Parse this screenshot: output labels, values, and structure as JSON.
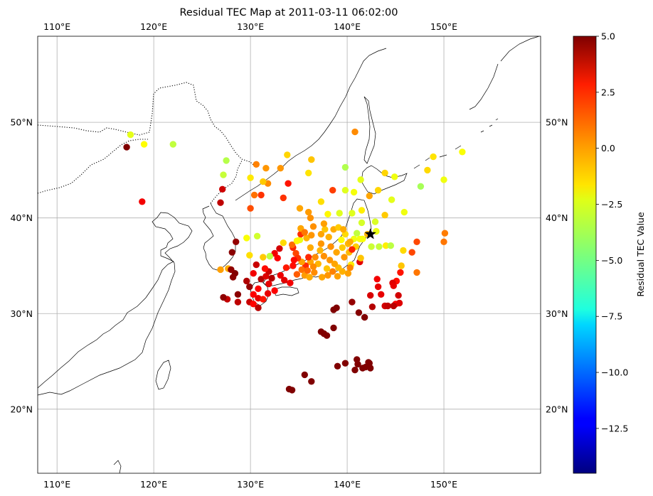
{
  "title": "Residual TEC Map at 2011-03-11 06:02:00",
  "map": {
    "lon_range": [
      108,
      160
    ],
    "lat_range": [
      13.3,
      59
    ],
    "lon_ticks": [
      110,
      120,
      130,
      140,
      150
    ],
    "lon_tick_labels": [
      "110°E",
      "120°E",
      "130°E",
      "140°E",
      "150°E"
    ],
    "lat_ticks": [
      20,
      30,
      40,
      50
    ],
    "lat_tick_labels": [
      "20°N",
      "30°N",
      "40°N",
      "50°N"
    ],
    "grid": true,
    "coastline_color": "#000000",
    "border_style": "dotted"
  },
  "epicenter": {
    "lon": 142.4,
    "lat": 38.3,
    "marker": "star",
    "color": "#000000"
  },
  "colorbar": {
    "label": "Residual TEC Value",
    "range": [
      -14.5,
      5.0
    ],
    "ticks": [
      5.0,
      2.5,
      0.0,
      -2.5,
      -5.0,
      -7.5,
      -10.0,
      -12.5
    ],
    "tick_labels": [
      "5.0",
      "2.5",
      "0.0",
      "−2.5",
      "−5.0",
      "−7.5",
      "−10.0",
      "−12.5"
    ],
    "colormap": "jet"
  },
  "chart_data": {
    "type": "scatter",
    "title": "Residual TEC Map at 2011-03-11 06:02:00",
    "xlabel": "",
    "ylabel": "",
    "colorbar_label": "Residual TEC Value",
    "xlim": [
      108,
      160
    ],
    "ylim": [
      13.3,
      59
    ],
    "grid": true,
    "points": [
      [
        117.6,
        48.7,
        -2.8
      ],
      [
        119.0,
        47.7,
        -2.3
      ],
      [
        122.0,
        47.7,
        -3.5
      ],
      [
        117.2,
        47.4,
        5.0
      ],
      [
        118.8,
        41.7,
        2.8
      ],
      [
        127.2,
        44.5,
        -3.4
      ],
      [
        127.5,
        46.0,
        -3.7
      ],
      [
        130.6,
        45.6,
        0.1
      ],
      [
        131.6,
        45.2,
        -0.3
      ],
      [
        133.1,
        45.2,
        -0.3
      ],
      [
        133.8,
        46.6,
        -1.5
      ],
      [
        136.3,
        46.1,
        -1.2
      ],
      [
        139.8,
        45.3,
        -3.8
      ],
      [
        140.8,
        49.0,
        -0.1
      ],
      [
        141.4,
        44.0,
        -2.8
      ],
      [
        143.9,
        44.7,
        -1.5
      ],
      [
        144.9,
        44.3,
        -2.6
      ],
      [
        147.6,
        43.3,
        -4.0
      ],
      [
        148.3,
        45.0,
        -1.6
      ],
      [
        148.9,
        46.4,
        -1.8
      ],
      [
        151.9,
        46.9,
        -2.4
      ],
      [
        150.0,
        44.0,
        -2.6
      ],
      [
        145.9,
        40.6,
        -2.6
      ],
      [
        144.6,
        41.9,
        -2.8
      ],
      [
        143.2,
        42.9,
        -1.5
      ],
      [
        142.3,
        42.3,
        -0.6
      ],
      [
        140.7,
        42.7,
        -2.5
      ],
      [
        139.8,
        42.9,
        -2.9
      ],
      [
        138.5,
        42.9,
        1.4
      ],
      [
        137.3,
        41.7,
        -1.7
      ],
      [
        136.0,
        44.7,
        -1.8
      ],
      [
        135.1,
        41.0,
        -0.6
      ],
      [
        136.0,
        40.6,
        -0.4
      ],
      [
        136.2,
        40.0,
        -0.2
      ],
      [
        138.0,
        40.4,
        -2.2
      ],
      [
        139.2,
        40.5,
        -2.9
      ],
      [
        140.5,
        40.5,
        -2.9
      ],
      [
        141.5,
        40.8,
        -2.0
      ],
      [
        143.9,
        40.3,
        -1.3
      ],
      [
        130.0,
        44.2,
        -1.9
      ],
      [
        131.1,
        42.4,
        1.6
      ],
      [
        131.8,
        43.6,
        -0.1
      ],
      [
        130.4,
        42.4,
        0.4
      ],
      [
        130.0,
        41.0,
        1.1
      ],
      [
        127.1,
        43.0,
        3.5
      ],
      [
        126.9,
        41.6,
        3.8
      ],
      [
        133.4,
        42.1,
        1.6
      ],
      [
        133.9,
        43.6,
        2.2
      ],
      [
        131.3,
        43.8,
        -1.3
      ],
      [
        130.7,
        38.1,
        -3.2
      ],
      [
        129.6,
        37.9,
        -2.4
      ],
      [
        128.5,
        37.5,
        4.6
      ],
      [
        128.1,
        36.4,
        4.8
      ],
      [
        126.9,
        34.6,
        -0.5
      ],
      [
        127.7,
        34.7,
        -0.7
      ],
      [
        128.4,
        34.2,
        5.0
      ],
      [
        128.0,
        34.6,
        4.7
      ],
      [
        128.2,
        33.8,
        4.8
      ],
      [
        128.7,
        32.0,
        4.8
      ],
      [
        128.7,
        31.2,
        3.8
      ],
      [
        127.6,
        31.5,
        3.7
      ],
      [
        127.2,
        31.7,
        4.7
      ],
      [
        129.9,
        31.2,
        3.6
      ],
      [
        130.3,
        31.0,
        2.5
      ],
      [
        130.8,
        30.6,
        3.9
      ],
      [
        129.9,
        32.8,
        4.6
      ],
      [
        130.3,
        32.0,
        2.6
      ],
      [
        130.8,
        31.6,
        3.0
      ],
      [
        131.3,
        31.5,
        2.2
      ],
      [
        131.8,
        32.1,
        3.0
      ],
      [
        131.1,
        33.6,
        4.0
      ],
      [
        131.6,
        33.9,
        3.2
      ],
      [
        131.9,
        34.4,
        3.6
      ],
      [
        132.2,
        33.7,
        4.0
      ],
      [
        132.5,
        32.4,
        2.6
      ],
      [
        131.9,
        33.1,
        3.0
      ],
      [
        133.5,
        33.5,
        3.1
      ],
      [
        134.1,
        33.2,
        2.8
      ],
      [
        133.7,
        34.8,
        2.1
      ],
      [
        134.4,
        35.0,
        2.3
      ],
      [
        132.5,
        36.3,
        2.8
      ],
      [
        133.0,
        36.8,
        3.4
      ],
      [
        132.0,
        36.0,
        -3.6
      ],
      [
        131.3,
        35.9,
        -1.3
      ],
      [
        130.6,
        35.1,
        3.6
      ],
      [
        129.9,
        36.1,
        -1.7
      ],
      [
        134.4,
        36.9,
        1.9
      ],
      [
        134.7,
        36.3,
        1.2
      ],
      [
        134.3,
        37.2,
        0.5
      ],
      [
        135.1,
        37.7,
        -2.7
      ],
      [
        135.2,
        38.3,
        1.7
      ],
      [
        135.2,
        38.9,
        -0.6
      ],
      [
        135.8,
        37.9,
        -0.8
      ],
      [
        136.3,
        38.2,
        -0.3
      ],
      [
        137.3,
        38.3,
        -0.6
      ],
      [
        137.7,
        38.8,
        -1.2
      ],
      [
        138.1,
        38.0,
        -0.8
      ],
      [
        138.6,
        38.8,
        -0.7
      ],
      [
        139.1,
        39.0,
        -1.3
      ],
      [
        139.8,
        38.3,
        -1.6
      ],
      [
        139.4,
        37.7,
        -2.3
      ],
      [
        140.1,
        37.3,
        -0.9
      ],
      [
        140.7,
        37.8,
        -2.6
      ],
      [
        141.0,
        38.4,
        -3.5
      ],
      [
        141.5,
        39.5,
        -3.1
      ],
      [
        141.6,
        37.8,
        -2.4
      ],
      [
        140.9,
        37.0,
        -1.4
      ],
      [
        140.2,
        36.4,
        -1.0
      ],
      [
        139.7,
        35.9,
        -0.3
      ],
      [
        140.4,
        35.1,
        -1.9
      ],
      [
        140.1,
        34.2,
        -0.5
      ],
      [
        139.5,
        34.4,
        -0.8
      ],
      [
        139.1,
        34.8,
        -1.0
      ],
      [
        138.7,
        35.2,
        -0.6
      ],
      [
        138.2,
        35.6,
        -0.3
      ],
      [
        137.6,
        36.0,
        -0.2
      ],
      [
        137.2,
        36.6,
        -0.9
      ],
      [
        136.7,
        35.9,
        -0.1
      ],
      [
        136.2,
        35.4,
        -0.6
      ],
      [
        135.7,
        35.0,
        1.8
      ],
      [
        135.3,
        34.6,
        0.4
      ],
      [
        134.8,
        34.1,
        0.8
      ],
      [
        135.6,
        34.0,
        -0.4
      ],
      [
        136.1,
        33.8,
        -0.7
      ],
      [
        136.6,
        34.3,
        -0.1
      ],
      [
        137.4,
        33.8,
        -0.6
      ],
      [
        138.0,
        34.0,
        -0.3
      ],
      [
        138.5,
        34.4,
        0.1
      ],
      [
        139.0,
        33.9,
        -0.5
      ],
      [
        137.9,
        34.7,
        -1.2
      ],
      [
        137.0,
        35.2,
        -0.9
      ],
      [
        136.5,
        34.9,
        -0.1
      ],
      [
        135.9,
        34.5,
        0.6
      ],
      [
        135.3,
        35.4,
        -0.5
      ],
      [
        134.9,
        35.8,
        1.6
      ],
      [
        136.2,
        36.9,
        -0.7
      ],
      [
        137.3,
        37.3,
        -0.3
      ],
      [
        138.3,
        37.0,
        -0.2
      ],
      [
        139.5,
        36.9,
        -1.3
      ],
      [
        141.3,
        35.4,
        3.1
      ],
      [
        142.5,
        37.0,
        -3.3
      ],
      [
        143.3,
        37.0,
        -3.4
      ],
      [
        144.0,
        37.1,
        -2.0
      ],
      [
        144.5,
        37.1,
        -3.6
      ],
      [
        143.0,
        38.6,
        -2.7
      ],
      [
        142.9,
        39.6,
        -3.0
      ],
      [
        141.3,
        37.8,
        -2.5
      ],
      [
        142.1,
        38.3,
        -0.9
      ],
      [
        140.5,
        36.7,
        1.9
      ],
      [
        140.3,
        37.5,
        -0.7
      ],
      [
        145.8,
        36.6,
        -1.6
      ],
      [
        146.7,
        36.4,
        1.2
      ],
      [
        147.2,
        37.5,
        1.2
      ],
      [
        150.0,
        37.5,
        0.3
      ],
      [
        150.1,
        38.4,
        0.2
      ],
      [
        145.6,
        35.0,
        -1.2
      ],
      [
        147.2,
        34.3,
        0.3
      ],
      [
        145.5,
        34.3,
        2.2
      ],
      [
        145.1,
        33.4,
        2.3
      ],
      [
        143.1,
        33.6,
        2.8
      ],
      [
        143.2,
        32.8,
        3.0
      ],
      [
        144.7,
        33.2,
        3.2
      ],
      [
        144.8,
        32.9,
        3.0
      ],
      [
        142.4,
        31.9,
        3.3
      ],
      [
        143.5,
        32.0,
        3.0
      ],
      [
        145.3,
        31.9,
        3.4
      ],
      [
        145.0,
        31.0,
        2.6
      ],
      [
        145.4,
        31.1,
        3.2
      ],
      [
        143.9,
        30.8,
        3.4
      ],
      [
        144.2,
        30.8,
        3.7
      ],
      [
        144.8,
        30.8,
        3.9
      ],
      [
        142.6,
        30.7,
        4.0
      ],
      [
        141.8,
        29.6,
        5.0
      ],
      [
        141.2,
        30.1,
        4.9
      ],
      [
        140.5,
        31.2,
        4.6
      ],
      [
        138.6,
        30.4,
        5.0
      ],
      [
        138.9,
        30.6,
        5.0
      ],
      [
        137.3,
        28.1,
        5.0
      ],
      [
        137.6,
        27.9,
        5.0
      ],
      [
        137.9,
        27.7,
        5.0
      ],
      [
        138.6,
        28.5,
        5.0
      ],
      [
        134.0,
        22.1,
        5.0
      ],
      [
        134.3,
        22.0,
        5.0
      ],
      [
        136.3,
        22.9,
        5.0
      ],
      [
        135.6,
        23.6,
        5.0
      ],
      [
        139.0,
        24.5,
        5.0
      ],
      [
        139.8,
        24.8,
        5.0
      ],
      [
        140.8,
        24.1,
        5.0
      ],
      [
        141.0,
        25.2,
        5.0
      ],
      [
        141.1,
        24.7,
        5.0
      ],
      [
        141.9,
        24.4,
        5.0
      ],
      [
        142.2,
        24.6,
        5.0
      ],
      [
        142.4,
        24.3,
        5.0
      ],
      [
        142.3,
        24.8,
        5.0
      ],
      [
        141.6,
        24.3,
        5.0
      ],
      [
        142.2,
        24.9,
        5.0
      ],
      [
        141.4,
        35.8,
        -1.2
      ],
      [
        140.3,
        34.8,
        0.0
      ],
      [
        138.9,
        36.4,
        -0.6
      ],
      [
        139.6,
        38.8,
        -0.7
      ],
      [
        137.6,
        39.4,
        -0.5
      ],
      [
        136.5,
        39.1,
        -0.2
      ],
      [
        135.6,
        38.5,
        0.3
      ],
      [
        134.8,
        37.6,
        -2.2
      ],
      [
        133.4,
        37.4,
        -1.6
      ],
      [
        132.8,
        35.8,
        2.6
      ],
      [
        131.5,
        34.7,
        2.4
      ],
      [
        130.3,
        34.2,
        2.8
      ],
      [
        129.6,
        33.4,
        4.1
      ],
      [
        130.8,
        32.6,
        2.6
      ],
      [
        133.1,
        34.0,
        2.9
      ],
      [
        134.5,
        35.6,
        2.4
      ],
      [
        136.0,
        35.9,
        1.8
      ]
    ]
  }
}
